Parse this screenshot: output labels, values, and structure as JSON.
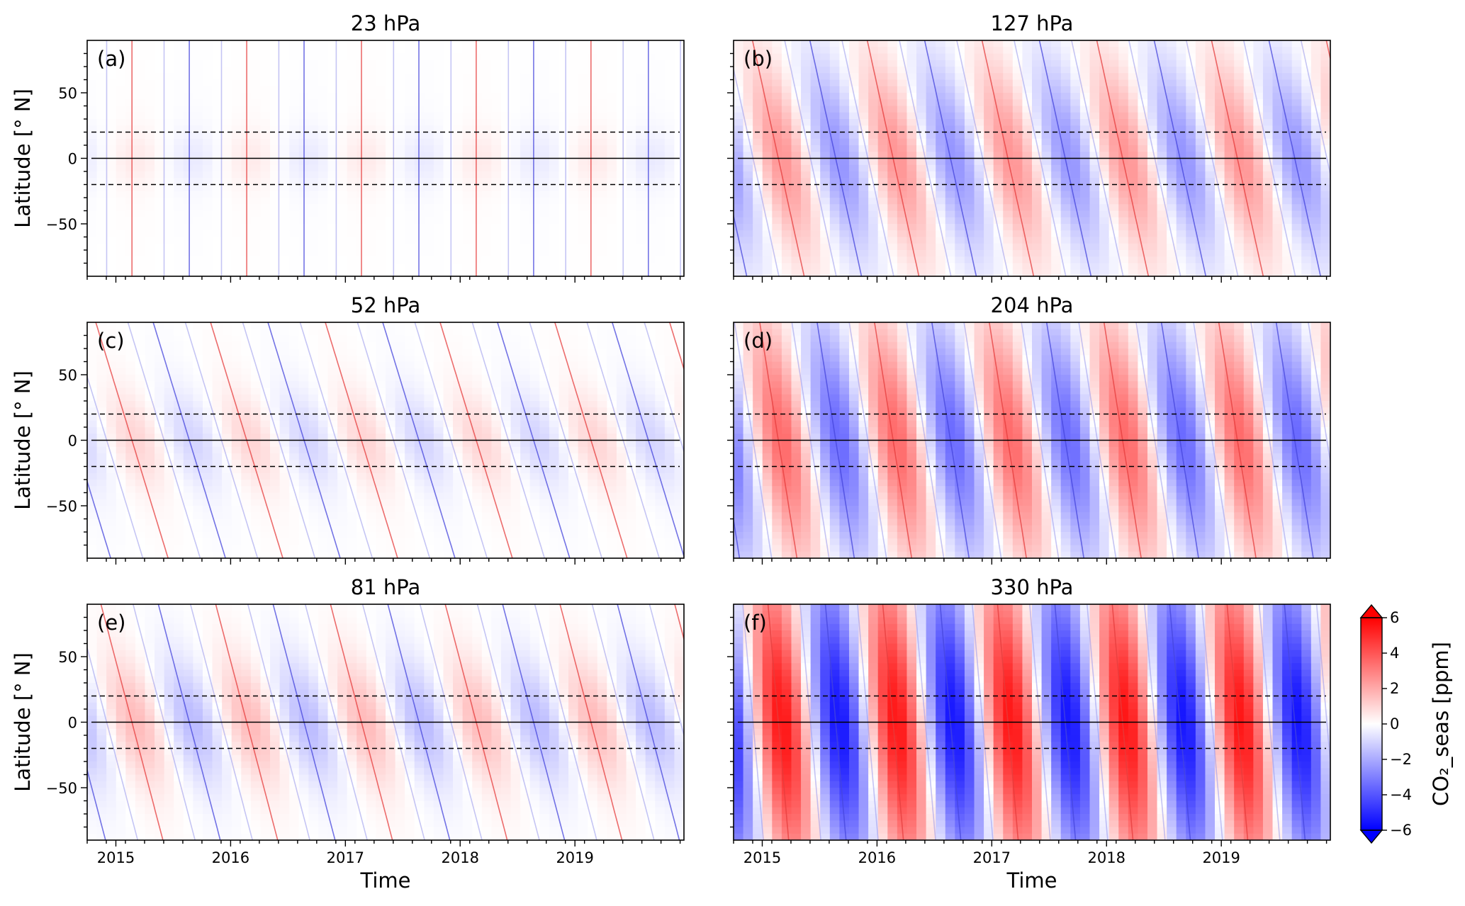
{
  "chart_data": {
    "type": "heatmap",
    "description_visible": "Six latitude-time panels of seasonal CO2 anomaly with contour lines",
    "x": {
      "label": "Time",
      "ticks": [
        "2015",
        "2016",
        "2017",
        "2018",
        "2019"
      ],
      "range": [
        2014.75,
        2019.95
      ]
    },
    "y": {
      "label": "Latitude [° N]",
      "ticks": [
        -50,
        0,
        50
      ],
      "range": [
        -90,
        90
      ]
    },
    "reference_lines": [
      {
        "lat": 20,
        "style": "dashed"
      },
      {
        "lat": 0,
        "style": "solid"
      },
      {
        "lat": -20,
        "style": "dashed"
      }
    ],
    "panels": [
      {
        "id": "a",
        "label": "(a)",
        "title": "23 hPa",
        "amplitude": 0.5,
        "tilt": 0.0,
        "lat_width": 22
      },
      {
        "id": "b",
        "label": "(b)",
        "title": "127 hPa",
        "amplitude": 2.5,
        "tilt": 0.0025,
        "lat_width": 70
      },
      {
        "id": "c",
        "label": "(c)",
        "title": "52 hPa",
        "amplitude": 1.0,
        "tilt": 0.0035,
        "lat_width": 35
      },
      {
        "id": "d",
        "label": "(d)",
        "title": "204 hPa",
        "amplitude": 3.5,
        "tilt": 0.0018,
        "lat_width": 90
      },
      {
        "id": "e",
        "label": "(e)",
        "title": "81 hPa",
        "amplitude": 1.6,
        "tilt": 0.003,
        "lat_width": 45
      },
      {
        "id": "f",
        "label": "(f)",
        "title": "330 hPa",
        "amplitude": 5.5,
        "tilt": 0.001,
        "lat_width": 120
      }
    ],
    "colorbar": {
      "label": "CO₂_seas [ppm]",
      "min": -6,
      "max": 6,
      "ticks": [
        -6,
        -4,
        -2,
        0,
        2,
        4,
        6
      ],
      "colors": {
        "low": "#0000ff",
        "mid": "#ffffff",
        "high": "#ff0000"
      }
    }
  }
}
